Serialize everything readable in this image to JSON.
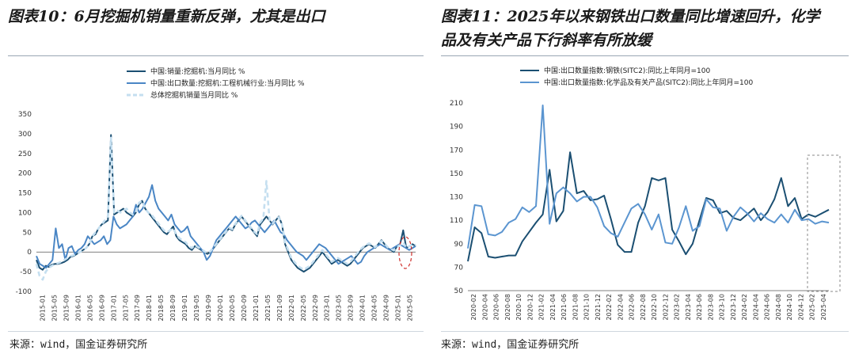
{
  "left": {
    "title": "图表10：6月挖掘机销量重新反弹，尤其是出口",
    "source": "来源：wind，国金证券研究所"
  },
  "right": {
    "title_line1": "图表11：2025年以来钢铁出口数量同比增速回升，化学",
    "title_line2": "品及有关产品下行斜率有所放缓",
    "source": "来源：wind，国金证券研究所"
  },
  "chart_data": [
    {
      "type": "line",
      "ylim": [
        -100,
        350
      ],
      "yticks": [
        -100,
        -50,
        0,
        50,
        100,
        150,
        200,
        250,
        300,
        350
      ],
      "xlabels": [
        "2015-01",
        "2015-05",
        "2015-09",
        "2016-01",
        "2016-05",
        "2016-09",
        "2017-01",
        "2017-05",
        "2017-09",
        "2018-01",
        "2018-05",
        "2018-09",
        "2019-01",
        "2019-05",
        "2019-09",
        "2020-01",
        "2020-05",
        "2020-09",
        "2021-01",
        "2021-05",
        "2021-09",
        "2022-01",
        "2022-05",
        "2022-09",
        "2023-01",
        "2023-05",
        "2023-09",
        "2024-01",
        "2024-05",
        "2024-09",
        "2025-01",
        "2025-05"
      ],
      "series": [
        {
          "name": "中国:销量:挖掘机:当月同比 %",
          "color": "#1b4f72",
          "style": "solid",
          "values": [
            -20,
            -40,
            -45,
            -35,
            -38,
            -32,
            -30,
            -30,
            -28,
            -25,
            -20,
            -12,
            -10,
            -5,
            0,
            5,
            10,
            20,
            40,
            45,
            60,
            70,
            75,
            80,
            297,
            95,
            100,
            105,
            110,
            100,
            95,
            90,
            100,
            120,
            130,
            110,
            100,
            90,
            80,
            70,
            60,
            50,
            45,
            55,
            65,
            40,
            30,
            25,
            20,
            10,
            5,
            15,
            10,
            5,
            0,
            -5,
            0,
            10,
            20,
            30,
            40,
            50,
            60,
            55,
            70,
            80,
            90,
            80,
            70,
            60,
            50,
            40,
            70,
            80,
            90,
            80,
            70,
            80,
            90,
            70,
            20,
            0,
            -20,
            -30,
            -40,
            -45,
            -50,
            -45,
            -40,
            -30,
            -20,
            -10,
            0,
            -10,
            -20,
            -30,
            -25,
            -20,
            -25,
            -30,
            -35,
            -30,
            -20,
            -10,
            0,
            10,
            15,
            20,
            15,
            10,
            20,
            30,
            20,
            10,
            5,
            0,
            15,
            20,
            55,
            10,
            15,
            20,
            15
          ]
        },
        {
          "name": "中国:出口数量:挖掘机:工程机械行业:当月同比 %",
          "color": "#4a86c5",
          "style": "solid",
          "values": [
            -10,
            -30,
            -35,
            -40,
            -30,
            -20,
            60,
            10,
            20,
            -20,
            10,
            15,
            -5,
            5,
            10,
            20,
            40,
            30,
            20,
            25,
            30,
            40,
            20,
            30,
            90,
            70,
            60,
            65,
            70,
            80,
            90,
            120,
            100,
            110,
            125,
            140,
            170,
            130,
            110,
            100,
            90,
            80,
            95,
            70,
            60,
            50,
            55,
            65,
            40,
            30,
            20,
            10,
            0,
            -20,
            -10,
            10,
            30,
            40,
            50,
            60,
            70,
            80,
            90,
            80,
            70,
            60,
            65,
            75,
            80,
            70,
            60,
            50,
            60,
            70,
            80,
            65,
            50,
            45,
            30,
            20,
            10,
            0,
            -5,
            -10,
            -20,
            -10,
            0,
            10,
            20,
            15,
            10,
            0,
            -10,
            -20,
            -30,
            -25,
            -20,
            -15,
            -10,
            -20,
            -30,
            -25,
            -10,
            0,
            5,
            10,
            15,
            20,
            15,
            10,
            5,
            10,
            15,
            20,
            15,
            10,
            5,
            10,
            15
          ]
        },
        {
          "name": "总体挖掘机销量当月同比 %",
          "color": "#c5dff0",
          "style": "dashed",
          "values": [
            -30,
            -60,
            -70,
            -50,
            -40,
            -35,
            -30,
            -28,
            -25,
            -20,
            -15,
            -10,
            -8,
            -5,
            0,
            5,
            10,
            20,
            40,
            50,
            60,
            70,
            80,
            90,
            290,
            100,
            105,
            100,
            105,
            110,
            100,
            95,
            100,
            125,
            130,
            110,
            100,
            95,
            85,
            75,
            65,
            55,
            50,
            55,
            60,
            45,
            35,
            30,
            25,
            15,
            10,
            18,
            12,
            8,
            2,
            -3,
            2,
            12,
            22,
            32,
            42,
            52,
            62,
            58,
            72,
            82,
            92,
            82,
            72,
            62,
            52,
            45,
            75,
            85,
            180,
            80,
            72,
            82,
            88,
            70,
            25,
            5,
            -15,
            -25,
            -35,
            -40,
            -45,
            -40,
            -35,
            -25,
            -15,
            -5,
            5,
            -5,
            -15,
            -25,
            -20,
            -15,
            -20,
            -25,
            -30,
            -25,
            -15,
            -5,
            5,
            12,
            18,
            22,
            18,
            12,
            22,
            28,
            22,
            12,
            8,
            4,
            12,
            18,
            25,
            10,
            15,
            20,
            18
          ]
        }
      ],
      "legend_position": "top-left"
    },
    {
      "type": "line",
      "ylim": [
        50,
        210
      ],
      "yticks": [
        50,
        70,
        90,
        110,
        130,
        150,
        170,
        190,
        210
      ],
      "xlabels": [
        "2020-02",
        "2020-04",
        "2020-06",
        "2020-08",
        "2020-10",
        "2020-12",
        "2021-02",
        "2021-04",
        "2021-06",
        "2021-08",
        "2021-10",
        "2021-12",
        "2022-02",
        "2022-04",
        "2022-06",
        "2022-08",
        "2022-10",
        "2022-12",
        "2023-02",
        "2023-04",
        "2023-06",
        "2023-08",
        "2023-10",
        "2023-12",
        "2024-02",
        "2024-04",
        "2024-06",
        "2024-08",
        "2024-10",
        "2024-12",
        "2025-02",
        "2025-04"
      ],
      "series": [
        {
          "name": "中国:出口数量指数:钢铁(SITC2):同比上年同月=100",
          "color": "#1b4f72",
          "values": [
            75,
            104,
            99,
            79,
            78,
            79,
            80,
            80,
            92,
            100,
            108,
            115,
            153,
            109,
            118,
            168,
            133,
            135,
            127,
            128,
            131,
            111,
            89,
            83,
            83,
            108,
            122,
            146,
            144,
            146,
            102,
            92,
            81,
            90,
            110,
            129,
            127,
            116,
            118,
            112,
            110,
            115,
            120,
            110,
            117,
            128,
            146,
            122,
            129,
            111,
            115,
            113,
            116,
            119
          ]
        },
        {
          "name": "中国:出口数量指数:化学品及有关产品(SITC2):同比上年同月=100",
          "color": "#5b95d0",
          "values": [
            86,
            123,
            122,
            98,
            97,
            100,
            108,
            111,
            121,
            117,
            122,
            208,
            107,
            133,
            138,
            133,
            126,
            130,
            130,
            121,
            105,
            99,
            96,
            108,
            120,
            124,
            115,
            102,
            115,
            91,
            90,
            104,
            122,
            101,
            105,
            128,
            121,
            120,
            101,
            113,
            121,
            116,
            109,
            116,
            111,
            108,
            115,
            108,
            119,
            110,
            111,
            107,
            109,
            108
          ]
        }
      ],
      "legend_position": "top-left"
    }
  ]
}
